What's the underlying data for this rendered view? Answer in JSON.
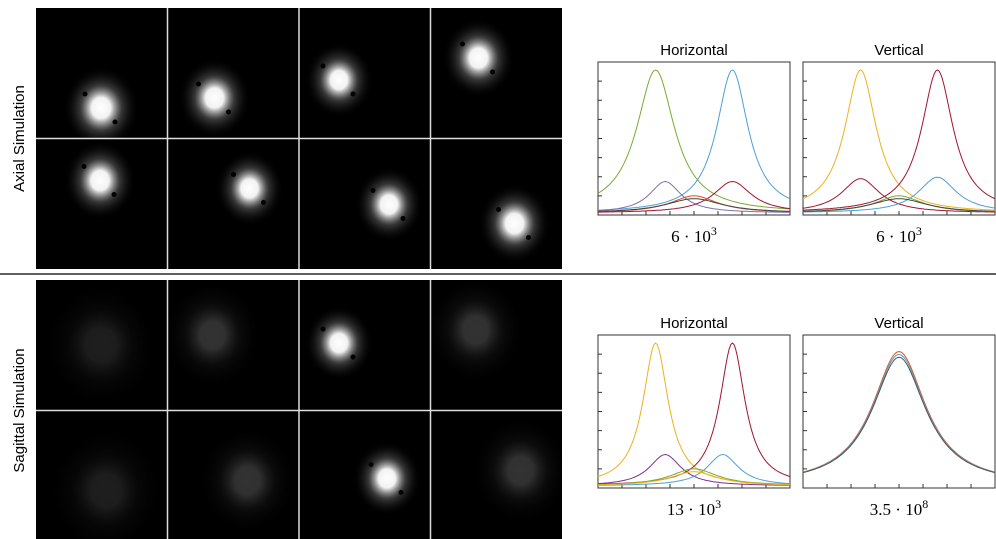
{
  "rows": [
    {
      "label": "Axial Simulation",
      "plots": [
        {
          "title": "Horizontal",
          "caption": {
            "base": "6 · 10",
            "exponent": "3"
          }
        },
        {
          "title": "Vertical",
          "caption": {
            "base": "6 · 10",
            "exponent": "3"
          }
        }
      ]
    },
    {
      "label": "Sagittal Simulation",
      "plots": [
        {
          "title": "Horizontal",
          "caption": {
            "base": "13 · 10",
            "exponent": "3"
          }
        },
        {
          "title": "Vertical",
          "caption": {
            "base": "3.5 · 10",
            "exponent": "8"
          }
        }
      ]
    }
  ]
}
